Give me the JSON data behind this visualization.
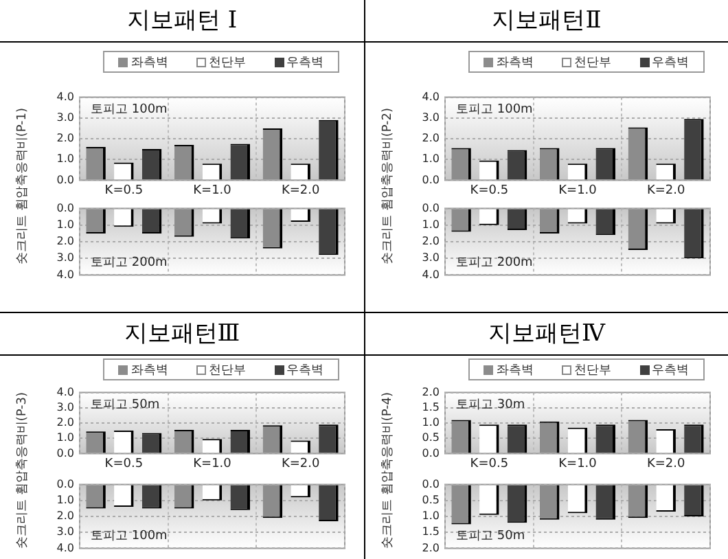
{
  "chart_data": [
    {
      "type": "bar",
      "title": "지보패턴 Ⅰ",
      "ylabel": "숏크리트 휨압축응력비(P-1)",
      "legend": "top",
      "grid": true,
      "annotations": [
        "토피고 100m"
      ],
      "categories": [
        "K=0.5",
        "K=1.0",
        "K=2.0"
      ],
      "ylim": [
        0,
        4
      ],
      "yticks": [
        {
          "value": 0,
          "label": "0.0"
        },
        {
          "value": 1,
          "label": "1.0"
        },
        {
          "value": 2,
          "label": "2.0"
        },
        {
          "value": 3,
          "label": "3.0"
        },
        {
          "value": 4,
          "label": "4.0"
        }
      ],
      "series": [
        {
          "name": "좌측벽",
          "color": "#8c8c8c",
          "values": [
            1.6,
            1.7,
            2.5
          ]
        },
        {
          "name": "천단부",
          "color": "#ffffff",
          "values": [
            0.85,
            0.8,
            0.8
          ]
        },
        {
          "name": "우측벽",
          "color": "#404040",
          "values": [
            1.5,
            1.75,
            2.9
          ]
        }
      ]
    },
    {
      "type": "bar",
      "grid": true,
      "tick_labels": "y",
      "annotations": [
        "토피고 200m"
      ],
      "categories": [
        null,
        null,
        null
      ],
      "ylim": [
        4,
        0
      ],
      "yticks": [
        {
          "value": 0,
          "label": "0.0"
        },
        {
          "value": 1,
          "label": "1.0"
        },
        {
          "value": 2,
          "label": "2.0"
        },
        {
          "value": 3,
          "label": "3.0"
        },
        {
          "value": 4,
          "label": "4.0"
        }
      ],
      "series": [
        {
          "color": "#8c8c8c",
          "values": [
            1.5,
            1.7,
            2.4
          ]
        },
        {
          "color": "#ffffff",
          "values": [
            1.1,
            0.9,
            0.8
          ]
        },
        {
          "color": "#404040",
          "values": [
            1.5,
            1.8,
            2.8
          ]
        }
      ]
    },
    {
      "type": "bar",
      "title": "지보패턴Ⅱ",
      "ylabel": "숏크리트 휨압축응력비(P-2)",
      "legend": "top",
      "grid": true,
      "annotations": [
        "토피고 100m"
      ],
      "categories": [
        "K=0.5",
        "K=1.0",
        "K=2.0"
      ],
      "ylim": [
        0,
        4
      ],
      "yticks": [
        {
          "value": 0,
          "label": "0.0"
        },
        {
          "value": 1,
          "label": "1.0"
        },
        {
          "value": 2,
          "label": "2.0"
        },
        {
          "value": 3,
          "label": "3.0"
        },
        {
          "value": 4,
          "label": "4.0"
        }
      ],
      "series": [
        {
          "name": "좌측벽",
          "color": "#8c8c8c",
          "values": [
            1.55,
            1.55,
            2.55
          ]
        },
        {
          "name": "천단부",
          "color": "#ffffff",
          "values": [
            0.95,
            0.8,
            0.8
          ]
        },
        {
          "name": "우측벽",
          "color": "#404040",
          "values": [
            1.45,
            1.55,
            2.95
          ]
        }
      ]
    },
    {
      "type": "bar",
      "grid": true,
      "tick_labels": "y",
      "annotations": [
        "토피고 200m"
      ],
      "categories": [
        null,
        null,
        null
      ],
      "ylim": [
        4,
        0
      ],
      "yticks": [
        {
          "value": 0,
          "label": "0.0"
        },
        {
          "value": 1,
          "label": "1.0"
        },
        {
          "value": 2,
          "label": "2.0"
        },
        {
          "value": 3,
          "label": "3.0"
        },
        {
          "value": 4,
          "label": "4.0"
        }
      ],
      "series": [
        {
          "color": "#8c8c8c",
          "values": [
            1.4,
            1.5,
            2.5
          ]
        },
        {
          "color": "#ffffff",
          "values": [
            1.0,
            0.9,
            0.9
          ]
        },
        {
          "color": "#404040",
          "values": [
            1.3,
            1.6,
            3.0
          ]
        }
      ]
    },
    {
      "type": "bar",
      "title": "지보패턴Ⅲ",
      "ylabel": "숏크리트 휨압축응력비(P-3)",
      "legend": "top",
      "grid": true,
      "annotations": [
        "토피고 50m"
      ],
      "categories": [
        "K=0.5",
        "K=1.0",
        "K=2.0"
      ],
      "ylim": [
        0,
        4
      ],
      "yticks": [
        {
          "value": 0,
          "label": "0.0"
        },
        {
          "value": 1,
          "label": "1.0"
        },
        {
          "value": 2,
          "label": "2.0"
        },
        {
          "value": 3,
          "label": "3.0"
        },
        {
          "value": 4,
          "label": "4.0"
        }
      ],
      "series": [
        {
          "name": "좌측벽",
          "color": "#8c8c8c",
          "values": [
            1.45,
            1.55,
            1.85
          ]
        },
        {
          "name": "천단부",
          "color": "#ffffff",
          "values": [
            1.5,
            0.95,
            0.85
          ]
        },
        {
          "name": "우측벽",
          "color": "#404040",
          "values": [
            1.35,
            1.55,
            1.9
          ]
        }
      ]
    },
    {
      "type": "bar",
      "grid": true,
      "tick_labels": "y",
      "annotations": [
        "토피고 100m"
      ],
      "categories": [
        null,
        null,
        null
      ],
      "ylim": [
        4,
        0
      ],
      "yticks": [
        {
          "value": 0,
          "label": "0.0"
        },
        {
          "value": 1,
          "label": "1.0"
        },
        {
          "value": 2,
          "label": "2.0"
        },
        {
          "value": 3,
          "label": "3.0"
        },
        {
          "value": 4,
          "label": "4.0"
        }
      ],
      "series": [
        {
          "color": "#8c8c8c",
          "values": [
            1.5,
            1.5,
            2.1
          ]
        },
        {
          "color": "#ffffff",
          "values": [
            1.4,
            1.0,
            0.8
          ]
        },
        {
          "color": "#404040",
          "values": [
            1.5,
            1.6,
            2.3
          ]
        }
      ]
    },
    {
      "type": "bar",
      "title": "지보패턴Ⅳ",
      "ylabel": "숏크리트 휨압축응력비(P-4)",
      "legend": "top",
      "grid": true,
      "annotations": [
        "토피고 30m"
      ],
      "categories": [
        "K=0.5",
        "K=1.0",
        "K=2.0"
      ],
      "ylim": [
        0,
        2
      ],
      "yticks": [
        {
          "value": 0,
          "label": "0.0"
        },
        {
          "value": 0.5,
          "label": "0.5"
        },
        {
          "value": 1,
          "label": "1.0"
        },
        {
          "value": 1.5,
          "label": "1.5"
        },
        {
          "value": 2,
          "label": "2.0"
        }
      ],
      "series": [
        {
          "name": "좌측벽",
          "color": "#8c8c8c",
          "values": [
            1.1,
            1.05,
            1.1
          ]
        },
        {
          "name": "천단부",
          "color": "#ffffff",
          "values": [
            0.95,
            0.85,
            0.8
          ]
        },
        {
          "name": "우측벽",
          "color": "#404040",
          "values": [
            0.95,
            0.95,
            0.95
          ]
        }
      ]
    },
    {
      "type": "bar",
      "grid": true,
      "tick_labels": "y",
      "annotations": [
        "토피고 50m"
      ],
      "categories": [
        null,
        null,
        null
      ],
      "ylim": [
        2,
        0
      ],
      "yticks": [
        {
          "value": 0,
          "label": "0.0"
        },
        {
          "value": 0.5,
          "label": "0.5"
        },
        {
          "value": 1,
          "label": "1.0"
        },
        {
          "value": 1.5,
          "label": "1.5"
        },
        {
          "value": 2,
          "label": "2.0"
        }
      ],
      "series": [
        {
          "color": "#8c8c8c",
          "values": [
            1.25,
            1.1,
            1.05
          ]
        },
        {
          "color": "#ffffff",
          "values": [
            0.95,
            0.9,
            0.85
          ]
        },
        {
          "color": "#404040",
          "values": [
            1.2,
            1.1,
            1.0
          ]
        }
      ]
    }
  ]
}
